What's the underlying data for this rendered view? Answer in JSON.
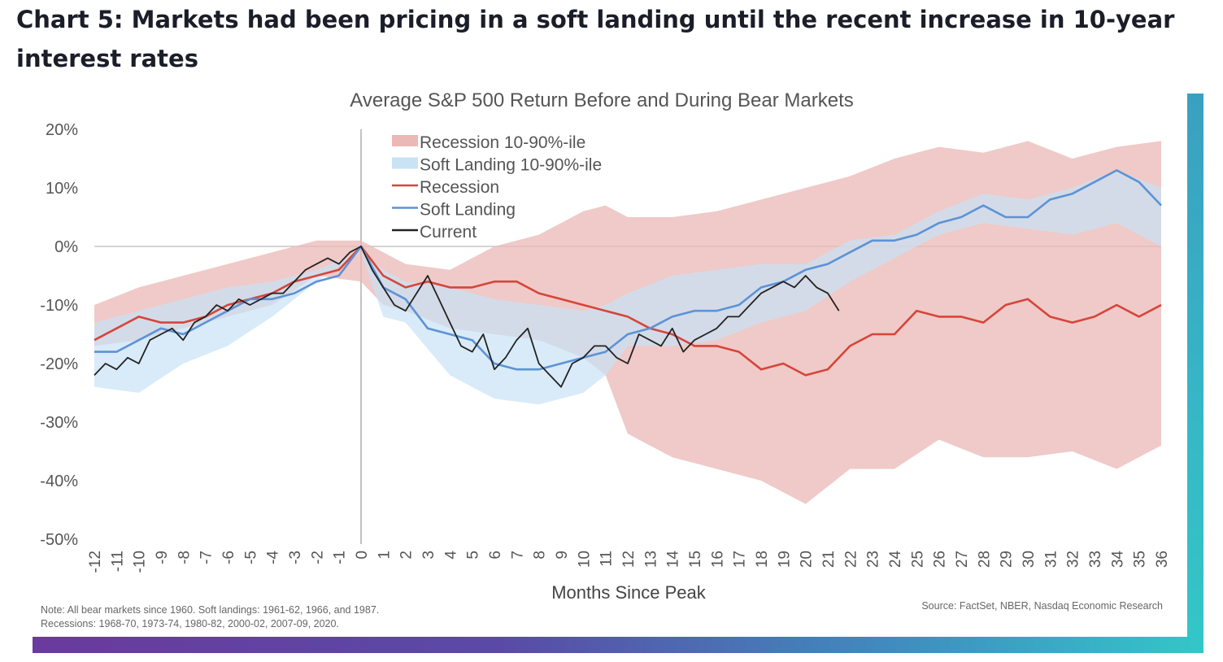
{
  "heading": "Chart 5: Markets had been pricing in a soft landing until the recent increase in 10-year interest rates",
  "chart_data": {
    "type": "line",
    "title": "Average S&P 500 Return Before and During Bear Markets",
    "xlabel": "Months Since Peak",
    "ylabel": "",
    "xlim": [
      -12,
      36
    ],
    "ylim": [
      -50,
      20
    ],
    "yticks": [
      20,
      10,
      0,
      -10,
      -20,
      -30,
      -40,
      -50
    ],
    "ytick_labels": [
      "20%",
      "10%",
      "0%",
      "-10%",
      "-20%",
      "-30%",
      "-40%",
      "-50%"
    ],
    "xticks": [
      -12,
      -11,
      -10,
      -9,
      -8,
      -7,
      -6,
      -5,
      -4,
      -3,
      -2,
      -1,
      0,
      1,
      2,
      3,
      4,
      5,
      6,
      7,
      8,
      9,
      10,
      11,
      12,
      13,
      14,
      15,
      16,
      17,
      18,
      19,
      20,
      21,
      22,
      23,
      24,
      25,
      26,
      27,
      28,
      29,
      30,
      31,
      32,
      33,
      34,
      35,
      36
    ],
    "legend_position": "top-left",
    "note": "Note: All bear markets since 1960. Soft landings: 1961-62, 1966, and 1987.",
    "note2": "Recessions: 1968-70, 1973-74, 1980-82, 2000-02, 2007-09, 2020.",
    "source": "Source: FactSet, NBER, Nasdaq Economic Research",
    "colors": {
      "recession_band": "#eab8b5",
      "soft_band": "#c9e3f5",
      "recession": "#d6453a",
      "soft": "#5b93d6",
      "current": "#222222"
    },
    "bands": [
      {
        "name": "Recession 10-90%-ile",
        "x": [
          -12,
          -10,
          -8,
          -6,
          -4,
          -2,
          0,
          1,
          2,
          4,
          6,
          8,
          10,
          11,
          12,
          14,
          16,
          18,
          20,
          22,
          24,
          26,
          28,
          30,
          32,
          34,
          36
        ],
        "upper": [
          -10,
          -7,
          -5,
          -3,
          -1,
          1,
          1,
          -1,
          -3,
          -4,
          0,
          2,
          6,
          7,
          5,
          5,
          6,
          8,
          10,
          12,
          15,
          17,
          16,
          18,
          15,
          17,
          18
        ],
        "lower": [
          -17,
          -16,
          -14,
          -12,
          -10,
          -5,
          -6,
          -10,
          -11,
          -14,
          -15,
          -16,
          -19,
          -22,
          -32,
          -36,
          -38,
          -40,
          -44,
          -38,
          -38,
          -33,
          -36,
          -36,
          -35,
          -38,
          -34
        ]
      },
      {
        "name": "Soft Landing 10-90%-ile",
        "x": [
          -12,
          -10,
          -8,
          -6,
          -4,
          -2,
          0,
          1,
          2,
          4,
          6,
          8,
          10,
          11,
          12,
          14,
          16,
          18,
          20,
          22,
          24,
          26,
          28,
          30,
          32,
          34,
          36
        ],
        "upper": [
          -13,
          -11,
          -9,
          -7,
          -6,
          -4,
          -1,
          -4,
          -6,
          -7,
          -9,
          -10,
          -11,
          -10,
          -8,
          -5,
          -4,
          -3,
          -3,
          1,
          2,
          6,
          9,
          8,
          10,
          13,
          10
        ],
        "lower": [
          -24,
          -25,
          -20,
          -17,
          -12,
          -6,
          -1,
          -12,
          -13,
          -22,
          -26,
          -27,
          -25,
          -22,
          -17,
          -17,
          -16,
          -13,
          -11,
          -6,
          -2,
          2,
          4,
          3,
          2,
          4,
          0
        ]
      }
    ],
    "series": [
      {
        "name": "Recession",
        "x": [
          -12,
          -11,
          -10,
          -9,
          -8,
          -7,
          -6,
          -5,
          -4,
          -3,
          -2,
          -1,
          0,
          1,
          2,
          3,
          4,
          5,
          6,
          7,
          8,
          9,
          10,
          11,
          12,
          13,
          14,
          15,
          16,
          17,
          18,
          19,
          20,
          21,
          22,
          23,
          24,
          25,
          26,
          27,
          28,
          29,
          30,
          31,
          32,
          33,
          34,
          35,
          36
        ],
        "values": [
          -16,
          -14,
          -12,
          -13,
          -13,
          -12,
          -10,
          -9,
          -8,
          -6,
          -5,
          -4,
          0,
          -5,
          -7,
          -6,
          -7,
          -7,
          -6,
          -6,
          -8,
          -9,
          -10,
          -11,
          -12,
          -14,
          -15,
          -17,
          -17,
          -18,
          -21,
          -20,
          -22,
          -21,
          -17,
          -15,
          -15,
          -11,
          -12,
          -12,
          -13,
          -10,
          -9,
          -12,
          -13,
          -12,
          -10,
          -12,
          -10
        ]
      },
      {
        "name": "Soft Landing",
        "x": [
          -12,
          -11,
          -10,
          -9,
          -8,
          -7,
          -6,
          -5,
          -4,
          -3,
          -2,
          -1,
          0,
          1,
          2,
          3,
          4,
          5,
          6,
          7,
          8,
          9,
          10,
          11,
          12,
          13,
          14,
          15,
          16,
          17,
          18,
          19,
          20,
          21,
          22,
          23,
          24,
          25,
          26,
          27,
          28,
          29,
          30,
          31,
          32,
          33,
          34,
          35,
          36
        ],
        "values": [
          -18,
          -18,
          -16,
          -14,
          -15,
          -13,
          -11,
          -9,
          -9,
          -8,
          -6,
          -5,
          0,
          -7,
          -9,
          -14,
          -15,
          -16,
          -20,
          -21,
          -21,
          -20,
          -19,
          -18,
          -15,
          -14,
          -12,
          -11,
          -11,
          -10,
          -7,
          -6,
          -4,
          -3,
          -1,
          1,
          1,
          2,
          4,
          5,
          7,
          5,
          5,
          8,
          9,
          11,
          13,
          11,
          7
        ]
      },
      {
        "name": "Current",
        "x": [
          -12,
          -11.5,
          -11,
          -10.5,
          -10,
          -9.5,
          -9,
          -8.5,
          -8,
          -7.5,
          -7,
          -6.5,
          -6,
          -5.5,
          -5,
          -4.5,
          -4,
          -3.5,
          -3,
          -2.5,
          -2,
          -1.5,
          -1,
          -0.5,
          0,
          0.5,
          1,
          1.5,
          2,
          2.5,
          3,
          3.5,
          4,
          4.5,
          5,
          5.5,
          6,
          6.5,
          7,
          7.5,
          8,
          8.5,
          9,
          9.5,
          10,
          10.5,
          11,
          11.5,
          12,
          12.5,
          13,
          13.5,
          14,
          14.5,
          15,
          15.5,
          16,
          16.5,
          17,
          17.5,
          18,
          18.5,
          19,
          19.5,
          20,
          20.5,
          21,
          21.5
        ],
        "values": [
          -22,
          -20,
          -21,
          -19,
          -20,
          -16,
          -15,
          -14,
          -16,
          -13,
          -12,
          -10,
          -11,
          -9,
          -10,
          -9,
          -8,
          -8,
          -6,
          -4,
          -3,
          -2,
          -3,
          -1,
          0,
          -4,
          -7,
          -10,
          -11,
          -8,
          -5,
          -9,
          -13,
          -17,
          -18,
          -15,
          -21,
          -19,
          -16,
          -14,
          -20,
          -22,
          -24,
          -20,
          -19,
          -17,
          -17,
          -19,
          -20,
          -15,
          -16,
          -17,
          -14,
          -18,
          -16,
          -15,
          -14,
          -12,
          -12,
          -10,
          -8,
          -7,
          -6,
          -7,
          -5,
          -7,
          -8,
          -11
        ]
      }
    ]
  }
}
